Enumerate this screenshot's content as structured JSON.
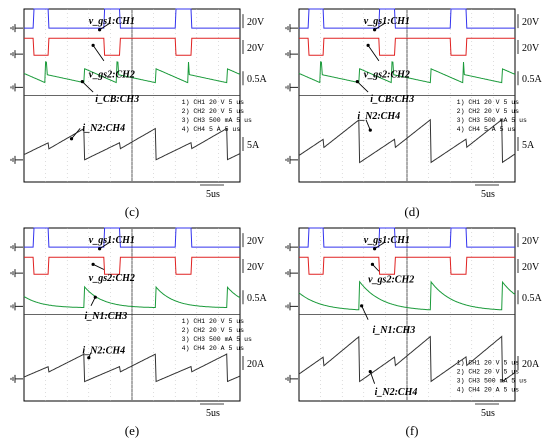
{
  "chart_data": [
    {
      "type": "line",
      "title": "",
      "caption": "(c)",
      "xlabel": "",
      "ylabel": "",
      "time_scale": "5us",
      "scale_labels": [
        "20V",
        "20V",
        "0.5A",
        "5A"
      ],
      "channel_annotations": [
        "v_gs1:CH1",
        "v_gs2:CH2",
        "i_CB:CH3",
        "i_N2:CH4"
      ],
      "settings": [
        "1) CH1  20  V   5 us",
        "2) CH2  20  V   5 us",
        "3) CH3  500 mA   5 us",
        "4) CH4  5  A   5 us"
      ],
      "series": [
        {
          "channel": "CH1",
          "color": "#3333ee",
          "shape": "pulse",
          "pulse_on": [
            0.1,
            0.26
          ],
          "duty": 0.16
        },
        {
          "channel": "CH2",
          "color": "#e02222",
          "shape": "pulse_inverted",
          "pulse_off": [
            0.1,
            0.26
          ],
          "duty": 0.16
        },
        {
          "channel": "CH3",
          "color": "#1a9a3a",
          "shape": "sawtooth_jump",
          "low": 0.3,
          "high": 0.75
        },
        {
          "channel": "CH4",
          "color": "#333333",
          "shape": "sawtooth",
          "low": 0.15,
          "high": 0.72
        }
      ]
    },
    {
      "type": "line",
      "title": "",
      "caption": "(d)",
      "xlabel": "",
      "ylabel": "",
      "time_scale": "5us",
      "scale_labels": [
        "20V",
        "20V",
        "0.5A",
        "5A"
      ],
      "channel_annotations": [
        "v_gs1:CH1",
        "v_gs2:CH2",
        "i_CB:CH3",
        "i_N2:CH4"
      ],
      "settings": [
        "1) CH1  20  V   5 us",
        "2) CH2  20  V   5 us",
        "3) CH3  500 mA   5 us",
        "4) CH4  5  A   5 us"
      ],
      "series": [
        {
          "channel": "CH1",
          "color": "#3333ee",
          "shape": "pulse",
          "pulse_on": [
            0.1,
            0.26
          ],
          "duty": 0.16
        },
        {
          "channel": "CH2",
          "color": "#e02222",
          "shape": "pulse_inverted",
          "pulse_off": [
            0.1,
            0.26
          ],
          "duty": 0.16
        },
        {
          "channel": "CH3",
          "color": "#1a9a3a",
          "shape": "sawtooth_jump",
          "low": 0.3,
          "high": 0.75
        },
        {
          "channel": "CH4",
          "color": "#333333",
          "shape": "sawtooth",
          "low": 0.1,
          "high": 0.88
        }
      ]
    },
    {
      "type": "line",
      "title": "",
      "caption": "(e)",
      "xlabel": "",
      "ylabel": "",
      "time_scale": "5us",
      "scale_labels": [
        "20V",
        "20V",
        "0.5A",
        "20A"
      ],
      "channel_annotations": [
        "v_gs1:CH1",
        "v_gs2:CH2",
        "i_N1:CH3",
        "i_N2:CH4"
      ],
      "settings": [
        "1) CH1  20  V   5 us",
        "2) CH2  20  V   5 us",
        "3) CH3  500 mA   5 us",
        "4) CH4  20  A   5 us"
      ],
      "series": [
        {
          "channel": "CH1",
          "color": "#3333ee",
          "shape": "pulse",
          "pulse_on": [
            0.1,
            0.26
          ],
          "duty": 0.16
        },
        {
          "channel": "CH2",
          "color": "#e02222",
          "shape": "pulse_inverted",
          "pulse_off": [
            0.1,
            0.26
          ],
          "duty": 0.16
        },
        {
          "channel": "CH3",
          "color": "#1a9a3a",
          "shape": "decay",
          "low": 0.1,
          "high": 0.78
        },
        {
          "channel": "CH4",
          "color": "#333333",
          "shape": "sawtooth",
          "low": 0.1,
          "high": 0.6
        }
      ]
    },
    {
      "type": "line",
      "title": "",
      "caption": "(f)",
      "xlabel": "",
      "ylabel": "",
      "time_scale": "5us",
      "scale_labels": [
        "20V",
        "20V",
        "0.5A",
        "20A"
      ],
      "channel_annotations": [
        "v_gs1:CH1",
        "v_gs2:CH2",
        "i_N1:CH3",
        "i_N2:CH4"
      ],
      "settings": [
        "1) CH1  20  V   5 us",
        "2) CH2  20  V   5 us",
        "3) CH3  500 mA   5 us",
        "4) CH4  20  A   5 us"
      ],
      "series": [
        {
          "channel": "CH1",
          "color": "#3333ee",
          "shape": "pulse",
          "pulse_on": [
            0.1,
            0.26
          ],
          "duty": 0.16
        },
        {
          "channel": "CH2",
          "color": "#e02222",
          "shape": "pulse_inverted",
          "pulse_off": [
            0.1,
            0.26
          ],
          "duty": 0.16
        },
        {
          "channel": "CH3",
          "color": "#1a9a3a",
          "shape": "decay_deep",
          "low": 0.0,
          "high": 0.95
        },
        {
          "channel": "CH4",
          "color": "#333333",
          "shape": "sawtooth",
          "low": 0.1,
          "high": 0.92
        }
      ]
    }
  ]
}
